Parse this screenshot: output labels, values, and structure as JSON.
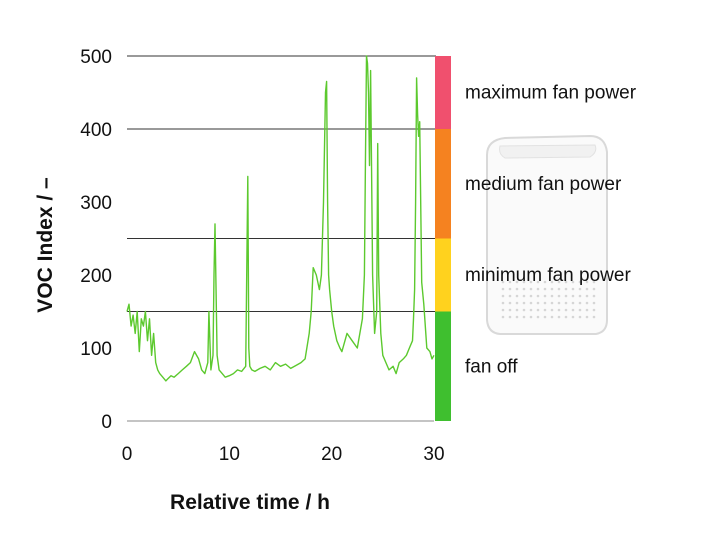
{
  "chart_data": {
    "type": "line",
    "xlabel": "Relative time / h",
    "ylabel": "VOC Index / –",
    "xlim": [
      0,
      30
    ],
    "ylim": [
      0,
      500
    ],
    "x_ticks": [
      "0",
      "10",
      "20",
      "30"
    ],
    "y_ticks": [
      "0",
      "100",
      "200",
      "300",
      "400",
      "500"
    ],
    "grid": "horizontal lines at 150, 250, 400 and 500",
    "series": [
      {
        "color": "#5cc92e",
        "x": [
          0,
          0.2,
          0.4,
          0.6,
          0.8,
          1.0,
          1.2,
          1.4,
          1.6,
          1.8,
          2.0,
          2.2,
          2.4,
          2.6,
          2.8,
          3.0,
          3.2,
          3.5,
          3.8,
          4.0,
          4.3,
          4.6,
          5.0,
          5.4,
          5.8,
          6.2,
          6.6,
          7.0,
          7.3,
          7.6,
          7.9,
          8.0,
          8.2,
          8.4,
          8.5,
          8.6,
          8.8,
          9.0,
          9.3,
          9.6,
          10.0,
          10.4,
          10.8,
          11.2,
          11.6,
          11.8,
          11.9,
          12.0,
          12.2,
          12.5,
          13.0,
          13.5,
          14.0,
          14.5,
          15.0,
          15.5,
          16.0,
          16.5,
          17.0,
          17.4,
          17.8,
          18.0,
          18.2,
          18.5,
          18.8,
          19.0,
          19.2,
          19.4,
          19.5,
          19.6,
          19.7,
          19.8,
          20.0,
          20.2,
          20.5,
          20.8,
          21.0,
          21.5,
          22.0,
          22.5,
          23.0,
          23.2,
          23.3,
          23.4,
          23.5,
          23.6,
          23.7,
          23.8,
          24.0,
          24.2,
          24.4,
          24.5,
          24.6,
          24.8,
          25.0,
          25.3,
          25.6,
          26.0,
          26.3,
          26.6,
          27.0,
          27.3,
          27.6,
          27.9,
          28.0,
          28.1,
          28.2,
          28.3,
          28.4,
          28.5,
          28.6,
          28.8,
          29.0,
          29.3,
          29.6,
          29.8,
          30.0
        ],
        "values": [
          150,
          160,
          130,
          145,
          120,
          150,
          95,
          140,
          130,
          150,
          110,
          140,
          90,
          120,
          80,
          70,
          65,
          60,
          55,
          58,
          62,
          60,
          65,
          70,
          75,
          80,
          95,
          85,
          70,
          65,
          80,
          150,
          70,
          90,
          200,
          270,
          90,
          70,
          65,
          60,
          62,
          65,
          70,
          68,
          75,
          335,
          100,
          75,
          70,
          68,
          72,
          75,
          70,
          80,
          75,
          78,
          72,
          76,
          80,
          85,
          120,
          150,
          210,
          200,
          180,
          200,
          300,
          450,
          465,
          300,
          200,
          180,
          150,
          130,
          110,
          100,
          95,
          120,
          110,
          100,
          140,
          200,
          350,
          500,
          490,
          450,
          350,
          480,
          200,
          120,
          150,
          380,
          200,
          120,
          90,
          80,
          70,
          75,
          65,
          80,
          85,
          90,
          100,
          110,
          140,
          180,
          300,
          470,
          420,
          390,
          410,
          190,
          160,
          100,
          95,
          85,
          90
        ]
      }
    ],
    "zones": [
      {
        "label": "maximum fan power",
        "from": 400,
        "to": 500,
        "color": "#f0506e"
      },
      {
        "label": "medium fan power",
        "from": 250,
        "to": 400,
        "color": "#f58220"
      },
      {
        "label": "minimum fan power",
        "from": 150,
        "to": 250,
        "color": "#ffd21e"
      },
      {
        "label": "fan off",
        "from": 0,
        "to": 150,
        "color": "#3fbf2f"
      }
    ]
  }
}
